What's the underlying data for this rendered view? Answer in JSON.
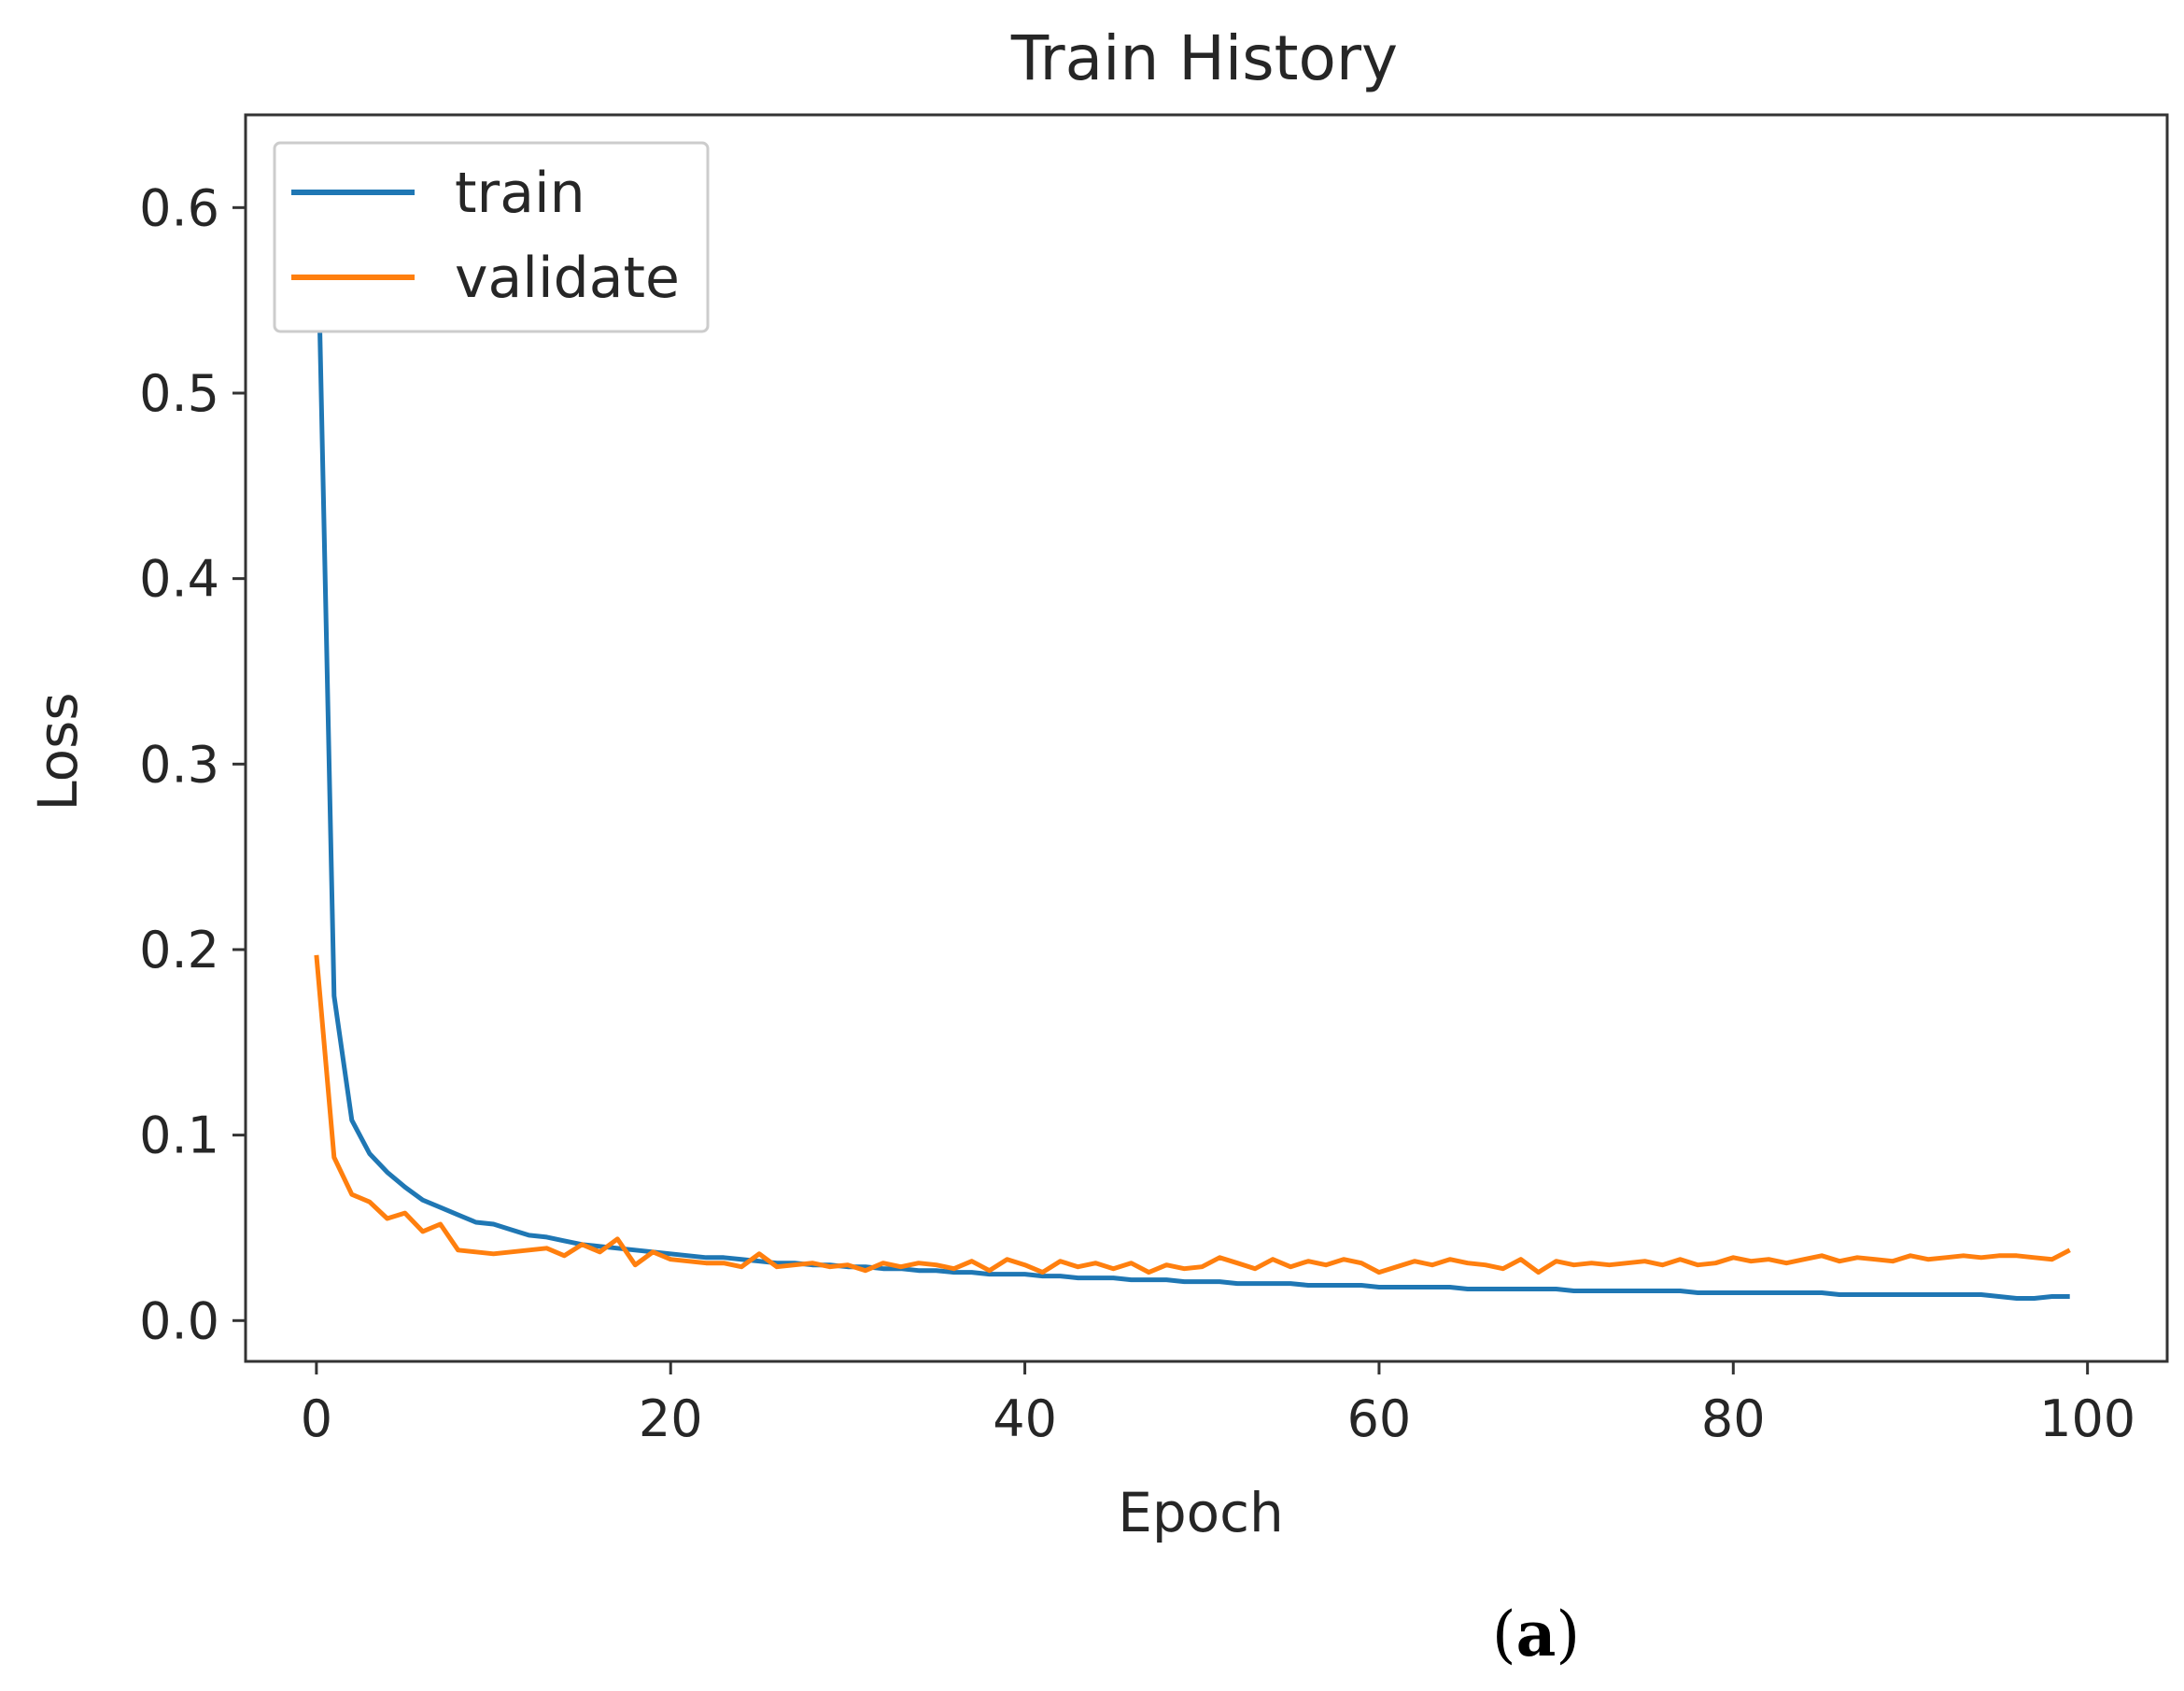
{
  "chart_data": {
    "type": "line",
    "title": "Train History",
    "xlabel": "Epoch",
    "ylabel": "Loss",
    "xlim": [
      -4,
      104.5
    ],
    "ylim": [
      -0.022,
      0.65
    ],
    "xticks": [
      "0",
      "20",
      "40",
      "60",
      "80",
      "100"
    ],
    "xtick_values": [
      0,
      20,
      40,
      60,
      80,
      100
    ],
    "yticks": [
      "0.0",
      "0.1",
      "0.2",
      "0.3",
      "0.4",
      "0.5",
      "0.6"
    ],
    "ytick_values": [
      0.0,
      0.1,
      0.2,
      0.3,
      0.4,
      0.5,
      0.6
    ],
    "grid": false,
    "legend_position": "top-left",
    "series": [
      {
        "name": "train",
        "color": "#1f77b4",
        "x": [
          0,
          1,
          2,
          3,
          4,
          5,
          6,
          7,
          8,
          9,
          10,
          11,
          12,
          13,
          14,
          15,
          16,
          17,
          18,
          19,
          20,
          21,
          22,
          23,
          24,
          25,
          26,
          27,
          28,
          29,
          30,
          31,
          32,
          33,
          34,
          35,
          36,
          37,
          38,
          39,
          40,
          41,
          42,
          43,
          44,
          45,
          46,
          47,
          48,
          49,
          50,
          51,
          52,
          53,
          54,
          55,
          56,
          57,
          58,
          59,
          60,
          61,
          62,
          63,
          64,
          65,
          66,
          67,
          68,
          69,
          70,
          71,
          72,
          73,
          74,
          75,
          76,
          77,
          78,
          79,
          80,
          81,
          82,
          83,
          84,
          85,
          86,
          87,
          88,
          89,
          90,
          91,
          92,
          93,
          94,
          95,
          96,
          97,
          98,
          99
        ],
        "values": [
          0.62,
          0.175,
          0.108,
          0.09,
          0.08,
          0.072,
          0.065,
          0.061,
          0.057,
          0.053,
          0.052,
          0.049,
          0.046,
          0.045,
          0.043,
          0.041,
          0.04,
          0.039,
          0.038,
          0.037,
          0.036,
          0.035,
          0.034,
          0.034,
          0.033,
          0.032,
          0.031,
          0.031,
          0.03,
          0.03,
          0.029,
          0.029,
          0.028,
          0.028,
          0.027,
          0.027,
          0.026,
          0.026,
          0.025,
          0.025,
          0.025,
          0.024,
          0.024,
          0.023,
          0.023,
          0.023,
          0.022,
          0.022,
          0.022,
          0.021,
          0.021,
          0.021,
          0.02,
          0.02,
          0.02,
          0.02,
          0.019,
          0.019,
          0.019,
          0.019,
          0.018,
          0.018,
          0.018,
          0.018,
          0.018,
          0.017,
          0.017,
          0.017,
          0.017,
          0.017,
          0.017,
          0.016,
          0.016,
          0.016,
          0.016,
          0.016,
          0.016,
          0.016,
          0.015,
          0.015,
          0.015,
          0.015,
          0.015,
          0.015,
          0.015,
          0.015,
          0.014,
          0.014,
          0.014,
          0.014,
          0.014,
          0.014,
          0.014,
          0.014,
          0.014,
          0.013,
          0.012,
          0.012,
          0.013,
          0.013
        ]
      },
      {
        "name": "validate",
        "color": "#ff7f0e",
        "x": [
          0,
          1,
          2,
          3,
          4,
          5,
          6,
          7,
          8,
          9,
          10,
          11,
          12,
          13,
          14,
          15,
          16,
          17,
          18,
          19,
          20,
          21,
          22,
          23,
          24,
          25,
          26,
          27,
          28,
          29,
          30,
          31,
          32,
          33,
          34,
          35,
          36,
          37,
          38,
          39,
          40,
          41,
          42,
          43,
          44,
          45,
          46,
          47,
          48,
          49,
          50,
          51,
          52,
          53,
          54,
          55,
          56,
          57,
          58,
          59,
          60,
          61,
          62,
          63,
          64,
          65,
          66,
          67,
          68,
          69,
          70,
          71,
          72,
          73,
          74,
          75,
          76,
          77,
          78,
          79,
          80,
          81,
          82,
          83,
          84,
          85,
          86,
          87,
          88,
          89,
          90,
          91,
          92,
          93,
          94,
          95,
          96,
          97,
          98,
          99
        ],
        "values": [
          0.197,
          0.088,
          0.068,
          0.064,
          0.055,
          0.058,
          0.048,
          0.052,
          0.038,
          0.037,
          0.036,
          0.037,
          0.038,
          0.039,
          0.035,
          0.041,
          0.037,
          0.044,
          0.03,
          0.037,
          0.033,
          0.032,
          0.031,
          0.031,
          0.029,
          0.036,
          0.029,
          0.03,
          0.031,
          0.029,
          0.03,
          0.027,
          0.031,
          0.029,
          0.031,
          0.03,
          0.028,
          0.032,
          0.027,
          0.033,
          0.03,
          0.026,
          0.032,
          0.029,
          0.031,
          0.028,
          0.031,
          0.026,
          0.03,
          0.028,
          0.029,
          0.034,
          0.031,
          0.028,
          0.033,
          0.029,
          0.032,
          0.03,
          0.033,
          0.031,
          0.026,
          0.029,
          0.032,
          0.03,
          0.033,
          0.031,
          0.03,
          0.028,
          0.033,
          0.026,
          0.032,
          0.03,
          0.031,
          0.03,
          0.031,
          0.032,
          0.03,
          0.033,
          0.03,
          0.031,
          0.034,
          0.032,
          0.033,
          0.031,
          0.033,
          0.035,
          0.032,
          0.034,
          0.033,
          0.032,
          0.035,
          0.033,
          0.034,
          0.035,
          0.034,
          0.035,
          0.035,
          0.034,
          0.033,
          0.038
        ]
      }
    ]
  },
  "caption": {
    "open": "(",
    "letter": "a",
    "close": ")"
  }
}
